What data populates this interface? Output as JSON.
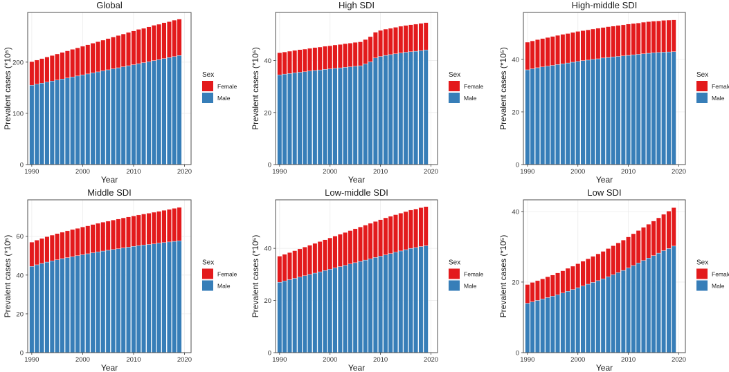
{
  "figure": {
    "x_axis_label": "Year",
    "y_axis_label": "Prevalent cases (*10⁵)",
    "legend": {
      "title": "Sex",
      "items": [
        {
          "label": "Female",
          "color": "#E31A1C"
        },
        {
          "label": "Male",
          "color": "#377EB8"
        }
      ]
    }
  },
  "chart_data": [
    {
      "type": "stacked-bar",
      "title": "Global",
      "x": [
        1990,
        1991,
        1992,
        1993,
        1994,
        1995,
        1996,
        1997,
        1998,
        1999,
        2000,
        2001,
        2002,
        2003,
        2004,
        2005,
        2006,
        2007,
        2008,
        2009,
        2010,
        2011,
        2012,
        2013,
        2014,
        2015,
        2016,
        2017,
        2018,
        2019
      ],
      "series": [
        {
          "name": "Male",
          "values": [
            155,
            157,
            159,
            161,
            163,
            165,
            167,
            169,
            171,
            173,
            175,
            177,
            179,
            181,
            183,
            185,
            187,
            189,
            191,
            193,
            195,
            197,
            199,
            201,
            203,
            205,
            207,
            209,
            211,
            213
          ]
        },
        {
          "name": "Female",
          "values": [
            46,
            47,
            48,
            49,
            50,
            51,
            52,
            53,
            54,
            55,
            56,
            57,
            58,
            59,
            60,
            61,
            62,
            63,
            64,
            65,
            66,
            67,
            67,
            68,
            69,
            69,
            70,
            70,
            71,
            71
          ]
        }
      ],
      "x_ticks": [
        1990,
        2000,
        2010,
        2020
      ],
      "y_ticks": [
        0,
        100,
        200
      ],
      "xlim": [
        1989.2,
        2021.3
      ],
      "ylim": [
        0,
        297
      ]
    },
    {
      "type": "stacked-bar",
      "title": "High SDI",
      "x": [
        1990,
        1991,
        1992,
        1993,
        1994,
        1995,
        1996,
        1997,
        1998,
        1999,
        2000,
        2001,
        2002,
        2003,
        2004,
        2005,
        2006,
        2007,
        2008,
        2009,
        2010,
        2011,
        2012,
        2013,
        2014,
        2015,
        2016,
        2017,
        2018,
        2019
      ],
      "series": [
        {
          "name": "Male",
          "values": [
            34.5,
            34.8,
            35.0,
            35.3,
            35.5,
            35.7,
            36.0,
            36.2,
            36.4,
            36.6,
            36.8,
            37.0,
            37.2,
            37.4,
            37.6,
            37.8,
            38.0,
            38.7,
            39.5,
            41.0,
            41.6,
            42.0,
            42.3,
            42.6,
            42.9,
            43.2,
            43.4,
            43.6,
            43.8,
            44.1
          ]
        },
        {
          "name": "Female",
          "values": [
            8.5,
            8.5,
            8.6,
            8.6,
            8.7,
            8.7,
            8.7,
            8.8,
            8.8,
            8.9,
            8.9,
            9.0,
            9.0,
            9.1,
            9.1,
            9.2,
            9.2,
            9.4,
            9.7,
            9.9,
            10.0,
            10.1,
            10.1,
            10.2,
            10.3,
            10.3,
            10.4,
            10.4,
            10.5,
            10.5
          ]
        }
      ],
      "x_ticks": [
        1990,
        2000,
        2010,
        2020
      ],
      "y_ticks": [
        0,
        20,
        40
      ],
      "xlim": [
        1989.2,
        2021.3
      ],
      "ylim": [
        0,
        58.5
      ]
    },
    {
      "type": "stacked-bar",
      "title": "High-middle SDI",
      "x": [
        1990,
        1991,
        1992,
        1993,
        1994,
        1995,
        1996,
        1997,
        1998,
        1999,
        2000,
        2001,
        2002,
        2003,
        2004,
        2005,
        2006,
        2007,
        2008,
        2009,
        2010,
        2011,
        2012,
        2013,
        2014,
        2015,
        2016,
        2017,
        2018,
        2019
      ],
      "series": [
        {
          "name": "Male",
          "values": [
            36.0,
            36.4,
            36.8,
            37.1,
            37.4,
            37.7,
            38.0,
            38.3,
            38.6,
            38.9,
            39.2,
            39.5,
            39.7,
            40.0,
            40.2,
            40.5,
            40.7,
            40.9,
            41.1,
            41.3,
            41.5,
            41.7,
            41.9,
            42.1,
            42.3,
            42.5,
            42.6,
            42.7,
            42.8,
            42.9
          ]
        },
        {
          "name": "Female",
          "values": [
            10.5,
            10.6,
            10.7,
            10.8,
            10.9,
            11.0,
            11.1,
            11.2,
            11.2,
            11.3,
            11.4,
            11.4,
            11.5,
            11.5,
            11.6,
            11.6,
            11.7,
            11.7,
            11.8,
            11.8,
            11.9,
            11.9,
            11.9,
            12.0,
            12.0,
            12.0,
            12.0,
            12.1,
            12.1,
            12.1
          ]
        }
      ],
      "x_ticks": [
        1990,
        2000,
        2010,
        2020
      ],
      "y_ticks": [
        0,
        20,
        40
      ],
      "xlim": [
        1989.2,
        2021.3
      ],
      "ylim": [
        0,
        57.8
      ]
    },
    {
      "type": "stacked-bar",
      "title": "Middle SDI",
      "x": [
        1990,
        1991,
        1992,
        1993,
        1994,
        1995,
        1996,
        1997,
        1998,
        1999,
        2000,
        2001,
        2002,
        2003,
        2004,
        2005,
        2006,
        2007,
        2008,
        2009,
        2010,
        2011,
        2012,
        2013,
        2014,
        2015,
        2016,
        2017,
        2018,
        2019
      ],
      "series": [
        {
          "name": "Male",
          "values": [
            44.5,
            45.3,
            46.0,
            46.7,
            47.3,
            47.9,
            48.5,
            49.0,
            49.5,
            50.0,
            50.5,
            51.0,
            51.5,
            52.0,
            52.4,
            52.8,
            53.2,
            53.6,
            54.0,
            54.4,
            54.8,
            55.2,
            55.5,
            55.8,
            56.1,
            56.5,
            56.8,
            57.1,
            57.4,
            57.7
          ]
        },
        {
          "name": "Female",
          "values": [
            12.5,
            12.7,
            12.9,
            13.1,
            13.3,
            13.5,
            13.6,
            13.8,
            14.0,
            14.1,
            14.3,
            14.4,
            14.6,
            14.7,
            14.9,
            15.0,
            15.2,
            15.3,
            15.5,
            15.6,
            15.7,
            15.8,
            16.0,
            16.1,
            16.3,
            16.4,
            16.6,
            16.8,
            17.0,
            17.2
          ]
        }
      ],
      "x_ticks": [
        1990,
        2000,
        2010,
        2020
      ],
      "y_ticks": [
        0,
        20,
        40,
        60
      ],
      "xlim": [
        1989.2,
        2021.3
      ],
      "ylim": [
        0,
        78.8
      ]
    },
    {
      "type": "stacked-bar",
      "title": "Low-middle SDI",
      "x": [
        1990,
        1991,
        1992,
        1993,
        1994,
        1995,
        1996,
        1997,
        1998,
        1999,
        2000,
        2001,
        2002,
        2003,
        2004,
        2005,
        2006,
        2007,
        2008,
        2009,
        2010,
        2011,
        2012,
        2013,
        2014,
        2015,
        2016,
        2017,
        2018,
        2019
      ],
      "series": [
        {
          "name": "Male",
          "values": [
            27.0,
            27.5,
            28.0,
            28.5,
            29.0,
            29.5,
            30.0,
            30.5,
            31.0,
            31.5,
            32.0,
            32.5,
            33.0,
            33.5,
            34.0,
            34.5,
            35.0,
            35.5,
            36.0,
            36.5,
            37.0,
            37.5,
            38.0,
            38.5,
            39.0,
            39.5,
            40.0,
            40.3,
            40.7,
            41.0
          ]
        },
        {
          "name": "Female",
          "values": [
            10.0,
            10.2,
            10.4,
            10.6,
            10.8,
            11.0,
            11.2,
            11.4,
            11.6,
            11.8,
            12.0,
            12.2,
            12.4,
            12.6,
            12.8,
            13.0,
            13.2,
            13.4,
            13.6,
            13.8,
            14.0,
            14.2,
            14.3,
            14.4,
            14.5,
            14.6,
            14.7,
            14.8,
            14.9,
            15.0
          ]
        }
      ],
      "x_ticks": [
        1990,
        2000,
        2010,
        2020
      ],
      "y_ticks": [
        0,
        20,
        40
      ],
      "xlim": [
        1989.2,
        2021.3
      ],
      "ylim": [
        0,
        58.6
      ]
    },
    {
      "type": "stacked-bar",
      "title": "Low SDI",
      "x": [
        1990,
        1991,
        1992,
        1993,
        1994,
        1995,
        1996,
        1997,
        1998,
        1999,
        2000,
        2001,
        2002,
        2003,
        2004,
        2005,
        2006,
        2007,
        2008,
        2009,
        2010,
        2011,
        2012,
        2013,
        2014,
        2015,
        2016,
        2017,
        2018,
        2019
      ],
      "series": [
        {
          "name": "Male",
          "values": [
            14.0,
            14.4,
            14.8,
            15.2,
            15.6,
            16.0,
            16.4,
            16.9,
            17.4,
            17.9,
            18.4,
            18.9,
            19.4,
            19.9,
            20.4,
            20.9,
            21.5,
            22.1,
            22.7,
            23.3,
            24.0,
            24.7,
            25.4,
            26.1,
            26.8,
            27.5,
            28.2,
            28.9,
            29.5,
            30.2
          ]
        },
        {
          "name": "Female",
          "values": [
            5.3,
            5.5,
            5.6,
            5.7,
            5.9,
            6.0,
            6.2,
            6.3,
            6.5,
            6.6,
            6.8,
            7.0,
            7.2,
            7.4,
            7.6,
            7.8,
            8.0,
            8.2,
            8.4,
            8.6,
            8.8,
            9.0,
            9.2,
            9.4,
            9.6,
            9.8,
            10.0,
            10.3,
            10.6,
            10.9
          ]
        }
      ],
      "x_ticks": [
        1990,
        2000,
        2010,
        2020
      ],
      "y_ticks": [
        0,
        20,
        40
      ],
      "xlim": [
        1989.2,
        2021.3
      ],
      "ylim": [
        0,
        43.3
      ]
    }
  ]
}
